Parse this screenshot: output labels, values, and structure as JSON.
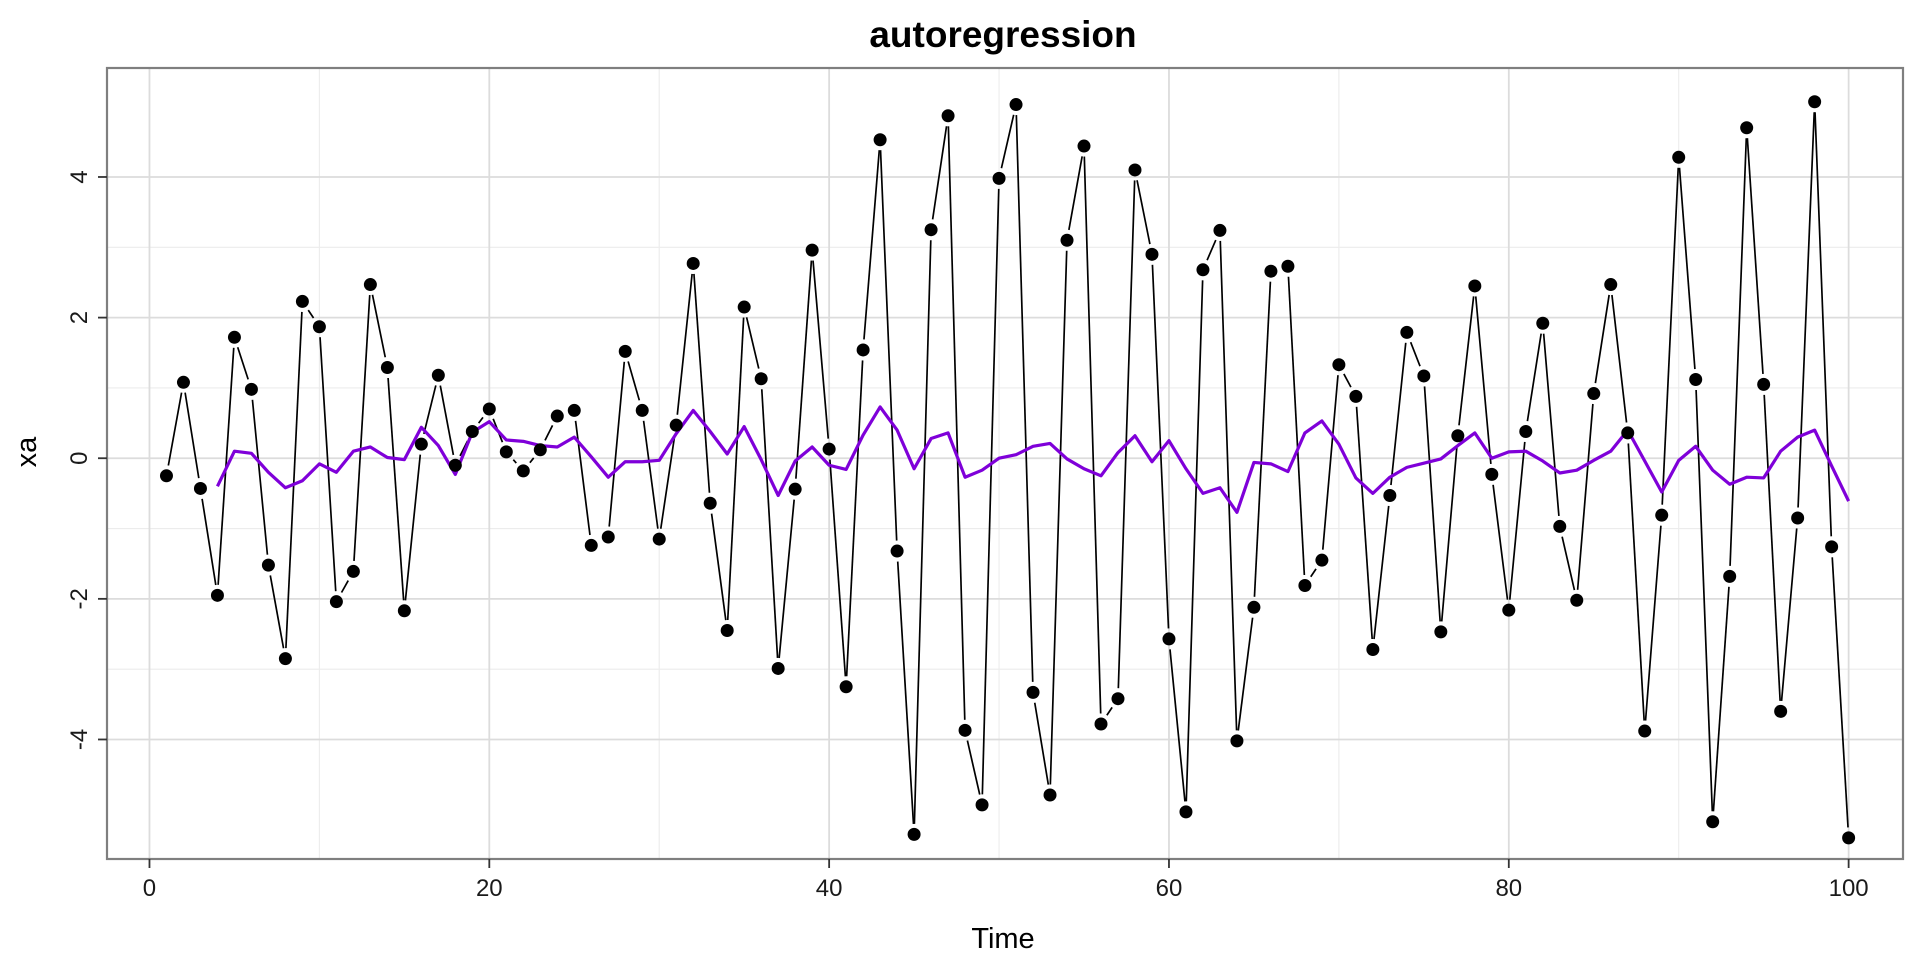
{
  "chart_data": {
    "type": "line",
    "title": "autoregression",
    "xlabel": "Time",
    "ylabel": "xa",
    "xlim": [
      -2.5,
      103.2
    ],
    "ylim": [
      -5.7,
      5.55
    ],
    "x_ticks": [
      0,
      20,
      40,
      60,
      80,
      100
    ],
    "y_ticks": [
      -4,
      -2,
      0,
      2,
      4
    ],
    "grid": true,
    "colors": {
      "observed": "#000000",
      "smoothed": "#7f00d9"
    },
    "series": [
      {
        "style": "points-and-line",
        "x": [
          1,
          2,
          3,
          4,
          5,
          6,
          7,
          8,
          9,
          10,
          11,
          12,
          13,
          14,
          15,
          16,
          17,
          18,
          19,
          20,
          21,
          22,
          23,
          24,
          25,
          26,
          27,
          28,
          29,
          30,
          31,
          32,
          33,
          34,
          35,
          36,
          37,
          38,
          39,
          40,
          41,
          42,
          43,
          44,
          45,
          46,
          47,
          48,
          49,
          50,
          51,
          52,
          53,
          54,
          55,
          56,
          57,
          58,
          59,
          60,
          61,
          62,
          63,
          64,
          65,
          66,
          67,
          68,
          69,
          70,
          71,
          72,
          73,
          74,
          75,
          76,
          77,
          78,
          79,
          80,
          81,
          82,
          83,
          84,
          85,
          86,
          87,
          88,
          89,
          90,
          91,
          92,
          93,
          94,
          95,
          96,
          97,
          98,
          99,
          100
        ],
        "values": [
          -0.25,
          1.08,
          -0.43,
          -1.95,
          1.72,
          0.98,
          -1.52,
          -2.85,
          2.23,
          1.87,
          -2.04,
          -1.61,
          2.47,
          1.29,
          -2.17,
          0.2,
          1.18,
          -0.1,
          0.38,
          0.7,
          0.09,
          -0.18,
          0.12,
          0.6,
          0.68,
          -1.24,
          -1.12,
          1.52,
          0.68,
          -1.15,
          0.47,
          2.77,
          -0.64,
          -2.45,
          2.15,
          1.13,
          -2.99,
          -0.44,
          2.96,
          0.13,
          -3.25,
          1.54,
          4.53,
          -1.32,
          -5.35,
          3.25,
          4.87,
          -3.87,
          -4.93,
          3.98,
          5.03,
          -3.33,
          -4.79,
          3.1,
          4.44,
          -3.78,
          -3.42,
          4.1,
          2.9,
          -2.57,
          -5.03,
          2.68,
          3.24,
          -4.02,
          -2.12,
          2.66,
          2.73,
          -1.81,
          -1.45,
          1.33,
          0.88,
          -2.72,
          -0.53,
          1.79,
          1.17,
          -2.47,
          0.32,
          2.45,
          -0.23,
          -2.16,
          0.38,
          1.92,
          -0.97,
          -2.02,
          0.92,
          2.47,
          0.36,
          -3.88,
          -0.81,
          4.28,
          1.12,
          -5.17,
          -1.68,
          4.7,
          1.05,
          -3.6,
          -0.85,
          5.07,
          -1.26,
          -5.4
        ]
      },
      {
        "style": "line",
        "x": [
          4,
          5,
          6,
          7,
          8,
          9,
          10,
          11,
          12,
          13,
          14,
          15,
          16,
          17,
          18,
          19,
          20,
          21,
          22,
          23,
          24,
          25,
          26,
          27,
          28,
          29,
          30,
          31,
          32,
          33,
          34,
          35,
          36,
          37,
          38,
          39,
          40,
          41,
          42,
          43,
          44,
          45,
          46,
          47,
          48,
          49,
          50,
          51,
          52,
          53,
          54,
          55,
          56,
          57,
          58,
          59,
          60,
          61,
          62,
          63,
          64,
          65,
          66,
          67,
          68,
          69,
          70,
          71,
          72,
          73,
          74,
          75,
          76,
          77,
          78,
          79,
          80,
          81,
          82,
          83,
          84,
          85,
          86,
          87,
          88,
          89,
          90,
          91,
          92,
          93,
          94,
          95,
          96,
          97,
          98,
          99,
          100
        ],
        "values": [
          -0.4,
          0.1,
          0.07,
          -0.2,
          -0.42,
          -0.32,
          -0.08,
          -0.2,
          0.1,
          0.16,
          0.01,
          -0.02,
          0.44,
          0.18,
          -0.23,
          0.37,
          0.52,
          0.26,
          0.24,
          0.18,
          0.16,
          0.3,
          0.02,
          -0.27,
          -0.05,
          -0.05,
          -0.03,
          0.35,
          0.68,
          0.38,
          0.06,
          0.45,
          -0.02,
          -0.53,
          -0.04,
          0.16,
          -0.1,
          -0.16,
          0.33,
          0.73,
          0.4,
          -0.15,
          0.28,
          0.36,
          -0.27,
          -0.17,
          0.0,
          0.05,
          0.17,
          0.21,
          -0.01,
          -0.15,
          -0.25,
          0.08,
          0.32,
          -0.05,
          0.25,
          -0.15,
          -0.5,
          -0.42,
          -0.77,
          -0.06,
          -0.08,
          -0.19,
          0.36,
          0.53,
          0.2,
          -0.28,
          -0.5,
          -0.27,
          -0.13,
          -0.07,
          -0.01,
          0.18,
          0.36,
          0.0,
          0.09,
          0.1,
          -0.04,
          -0.21,
          -0.17,
          -0.03,
          0.1,
          0.4,
          -0.04,
          -0.48,
          -0.03,
          0.17,
          -0.17,
          -0.37,
          -0.27,
          -0.28,
          0.1,
          0.3,
          0.4,
          -0.11,
          -0.61
        ]
      }
    ]
  }
}
